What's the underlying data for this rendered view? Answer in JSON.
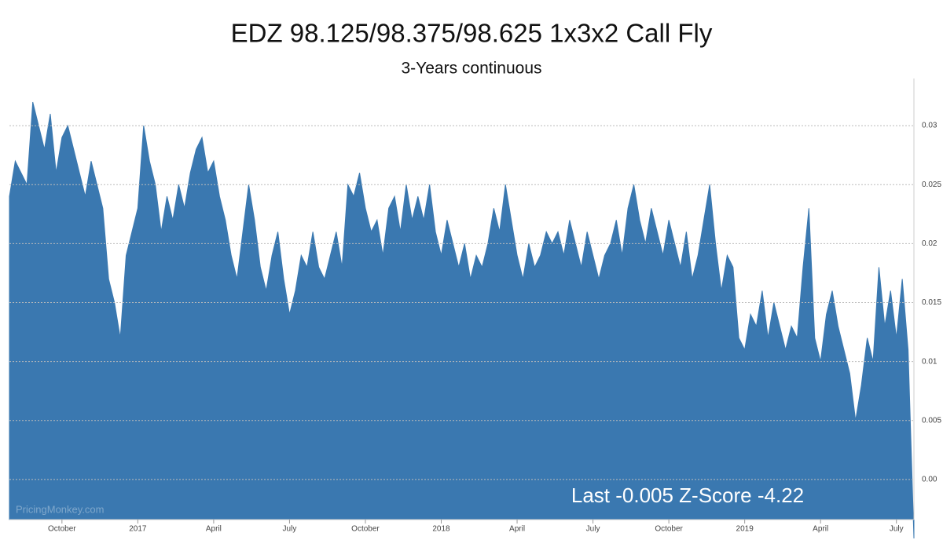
{
  "chart_data": {
    "type": "area",
    "title": "EDZ 98.125/98.375/98.625 1x3x2 Call Fly",
    "subtitle": "3-Years continuous",
    "annotation": "Last -0.005 Z-Score -4.22",
    "watermark": "PricingMonkey.com",
    "color": "#3a78b0",
    "grid": true,
    "ylim": [
      -0.0034,
      0.034
    ],
    "yticks": [
      {
        "value": 0,
        "label": "0.00"
      },
      0.005,
      0.01,
      0.015,
      0.02,
      0.025,
      0.03
    ],
    "categories": [
      null,
      null,
      null,
      null,
      null,
      null,
      null,
      null,
      null,
      "October",
      null,
      null,
      null,
      null,
      null,
      null,
      null,
      null,
      null,
      null,
      null,
      null,
      "2017",
      null,
      null,
      null,
      null,
      null,
      null,
      null,
      null,
      null,
      null,
      null,
      null,
      "April",
      null,
      null,
      null,
      null,
      null,
      null,
      null,
      null,
      null,
      null,
      null,
      null,
      "July",
      null,
      null,
      null,
      null,
      null,
      null,
      null,
      null,
      null,
      null,
      null,
      null,
      "October",
      null,
      null,
      null,
      null,
      null,
      null,
      null,
      null,
      null,
      null,
      null,
      null,
      "2018",
      null,
      null,
      null,
      null,
      null,
      null,
      null,
      null,
      null,
      null,
      null,
      null,
      "April",
      null,
      null,
      null,
      null,
      null,
      null,
      null,
      null,
      null,
      null,
      null,
      null,
      "July",
      null,
      null,
      null,
      null,
      null,
      null,
      null,
      null,
      null,
      null,
      null,
      null,
      "October",
      null,
      null,
      null,
      null,
      null,
      null,
      null,
      null,
      null,
      null,
      null,
      null,
      "2019",
      null,
      null,
      null,
      null,
      null,
      null,
      null,
      null,
      null,
      null,
      null,
      null,
      "April",
      null,
      null,
      null,
      null,
      null,
      null,
      null,
      null,
      null,
      null,
      null,
      null,
      "July",
      null,
      null,
      null
    ],
    "values": [
      0.024,
      0.027,
      0.026,
      0.025,
      0.032,
      0.03,
      0.028,
      0.031,
      0.026,
      0.029,
      0.03,
      0.028,
      0.026,
      0.024,
      0.027,
      0.025,
      0.023,
      0.017,
      0.015,
      0.012,
      0.019,
      0.021,
      0.023,
      0.03,
      0.027,
      0.025,
      0.021,
      0.024,
      0.022,
      0.025,
      0.023,
      0.026,
      0.028,
      0.029,
      0.026,
      0.027,
      0.024,
      0.022,
      0.019,
      0.017,
      0.021,
      0.025,
      0.022,
      0.018,
      0.016,
      0.019,
      0.021,
      0.017,
      0.014,
      0.016,
      0.019,
      0.018,
      0.021,
      0.018,
      0.017,
      0.019,
      0.021,
      0.018,
      0.025,
      0.024,
      0.026,
      0.023,
      0.021,
      0.022,
      0.019,
      0.023,
      0.024,
      0.021,
      0.025,
      0.022,
      0.024,
      0.022,
      0.025,
      0.021,
      0.019,
      0.022,
      0.02,
      0.018,
      0.02,
      0.017,
      0.019,
      0.018,
      0.02,
      0.023,
      0.021,
      0.025,
      0.022,
      0.019,
      0.017,
      0.02,
      0.018,
      0.019,
      0.021,
      0.02,
      0.021,
      0.019,
      0.022,
      0.02,
      0.018,
      0.021,
      0.019,
      0.017,
      0.019,
      0.02,
      0.022,
      0.019,
      0.023,
      0.025,
      0.022,
      0.02,
      0.023,
      0.021,
      0.019,
      0.022,
      0.02,
      0.018,
      0.021,
      0.017,
      0.019,
      0.022,
      0.025,
      0.02,
      0.016,
      0.019,
      0.018,
      0.012,
      0.011,
      0.014,
      0.013,
      0.016,
      0.012,
      0.015,
      0.013,
      0.011,
      0.013,
      0.012,
      0.018,
      0.023,
      0.012,
      0.01,
      0.014,
      0.016,
      0.013,
      0.011,
      0.009,
      0.005,
      0.008,
      0.012,
      0.01,
      0.018,
      0.013,
      0.016,
      0.012,
      0.017,
      0.011,
      -0.005
    ]
  }
}
